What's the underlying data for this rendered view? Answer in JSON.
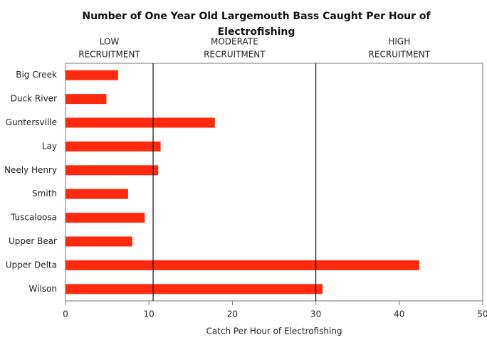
{
  "chart_data": {
    "type": "hbar",
    "title": "Number of One Year Old Largemouth Bass Caught Per Hour of Electrofishing",
    "xlabel": "Catch Per Hour of Electrofishing",
    "categories": [
      "Big Creek",
      "Duck River",
      "Guntersville",
      "Lay",
      "Neely Henry",
      "Smith",
      "Tuscaloosa",
      "Upper Bear",
      "Upper Delta",
      "Wilson"
    ],
    "values": [
      6.3,
      4.9,
      17.9,
      11.4,
      11.1,
      7.5,
      9.5,
      8.0,
      42.4,
      30.8
    ],
    "color": "#ff2a0e",
    "xlim": [
      0,
      50
    ],
    "xticks": [
      0,
      10,
      20,
      30,
      40,
      50
    ],
    "reference_lines": [
      10.5,
      30
    ],
    "annotations": [
      [
        "LOW",
        "RECRUITMENT"
      ],
      [
        "MODERATE",
        "RECRUITMENT"
      ],
      [
        "HIGH",
        "RECRUITMENT"
      ]
    ]
  }
}
